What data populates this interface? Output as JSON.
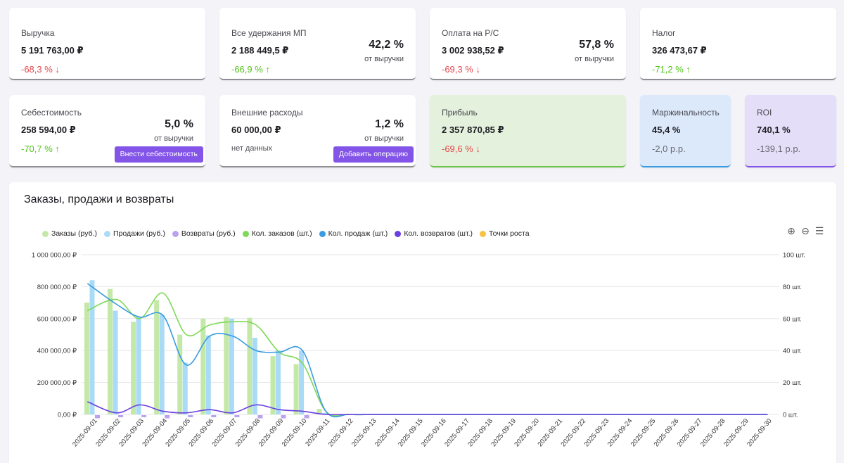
{
  "cards": {
    "revenue": {
      "label": "Выручка",
      "value": "5 191 763,00 ₽",
      "delta": "-68,3 % ↓"
    },
    "deductions": {
      "label": "Все удержания МП",
      "value": "2 188 449,5 ₽",
      "delta": "-66,9 % ↑",
      "pct": "42,2 %",
      "pct_sub": "от выручки"
    },
    "payment": {
      "label": "Оплата на Р/С",
      "value": "3 002 938,52 ₽",
      "delta": "-69,3 % ↓",
      "pct": "57,8 %",
      "pct_sub": "от выручки"
    },
    "tax": {
      "label": "Налог",
      "value": "326 473,67 ₽",
      "delta": "-71,2 % ↑"
    },
    "cost": {
      "label": "Себестоимость",
      "value": "258 594,00 ₽",
      "delta": "-70,7 % ↑",
      "pct": "5,0 %",
      "pct_sub": "от выручки",
      "button": "Внести себестоимость"
    },
    "external": {
      "label": "Внешние расходы",
      "value": "60 000,00 ₽",
      "note": "нет данных",
      "pct": "1,2 %",
      "pct_sub": "от выручки",
      "button": "Добавить операцию"
    },
    "profit": {
      "label": "Прибыль",
      "value": "2 357 870,85 ₽",
      "delta": "-69,6 % ↓"
    },
    "margin": {
      "label": "Маржинальность",
      "value": "45,4 %",
      "delta": "-2,0 p.p."
    },
    "roi": {
      "label": "ROI",
      "value": "740,1 %",
      "delta": "-139,1 p.p."
    }
  },
  "colors": {
    "accent": "#8354e8",
    "red": "#e5484d",
    "green": "#52c41a",
    "orders_bar": "#c3e8a8",
    "sales_bar": "#a9dbf7",
    "returns_bar": "#b9a3ef",
    "orders_line": "#7ed957",
    "sales_line": "#3a9be0",
    "returns_line": "#6a3ee0",
    "growth": "#f5c242"
  },
  "chart": {
    "title": "Заказы, продажи и возвраты",
    "legend": [
      {
        "name": "Заказы (руб.)",
        "color": "#c3e8a8"
      },
      {
        "name": "Продажи (руб.)",
        "color": "#a9dbf7"
      },
      {
        "name": "Возвраты (руб.)",
        "color": "#b9a3ef"
      },
      {
        "name": "Кол. заказов (шт.)",
        "color": "#7ed957"
      },
      {
        "name": "Кол. продаж (шт.)",
        "color": "#3a9be0"
      },
      {
        "name": "Кол. возвратов (шт.)",
        "color": "#6a3ee0"
      },
      {
        "name": "Точки роста",
        "color": "#f5c242"
      }
    ],
    "toolbar": {
      "zoom_in_icon": "zoom-in-icon",
      "zoom_out_icon": "zoom-out-icon",
      "menu_icon": "menu-icon"
    }
  },
  "chart_data": {
    "type": "bar",
    "title": "Заказы, продажи и возвраты",
    "categories": [
      "2025-09-01",
      "2025-09-02",
      "2025-09-03",
      "2025-09-04",
      "2025-09-05",
      "2025-09-06",
      "2025-09-07",
      "2025-09-08",
      "2025-09-09",
      "2025-09-10",
      "2025-09-11",
      "2025-09-12",
      "2025-09-13",
      "2025-09-14",
      "2025-09-15",
      "2025-09-16",
      "2025-09-17",
      "2025-09-18",
      "2025-09-19",
      "2025-09-20",
      "2025-09-21",
      "2025-09-22",
      "2025-09-23",
      "2025-09-24",
      "2025-09-25",
      "2025-09-26",
      "2025-09-27",
      "2025-09-28",
      "2025-09-29",
      "2025-09-30"
    ],
    "y_left": {
      "ylim": [
        0,
        1000000
      ],
      "ticks": [
        "0,00 ₽",
        "200 000,00 ₽",
        "400 000,00 ₽",
        "600 000,00 ₽",
        "800 000,00 ₽",
        "1 000 000,00 ₽"
      ]
    },
    "y_right": {
      "ylim": [
        0,
        100
      ],
      "ticks": [
        "0 шт.",
        "20 шт.",
        "40 шт.",
        "60 шт.",
        "80 шт.",
        "100 шт."
      ]
    },
    "series": [
      {
        "name": "Заказы (руб.)",
        "kind": "bar",
        "axis": "left",
        "color": "#c3e8a8",
        "values": [
          700000,
          785000,
          580000,
          715000,
          500000,
          600000,
          610000,
          605000,
          365000,
          315000,
          35000,
          0,
          0,
          0,
          0,
          0,
          0,
          0,
          0,
          0,
          0,
          0,
          0,
          0,
          0,
          0,
          0,
          0,
          0,
          0
        ]
      },
      {
        "name": "Продажи (руб.)",
        "kind": "bar",
        "axis": "left",
        "color": "#a9dbf7",
        "values": [
          840000,
          650000,
          610000,
          625000,
          325000,
          495000,
          600000,
          480000,
          400000,
          400000,
          10000,
          0,
          0,
          0,
          0,
          0,
          0,
          0,
          0,
          0,
          0,
          0,
          0,
          0,
          0,
          0,
          0,
          0,
          0,
          0
        ]
      },
      {
        "name": "Возвраты (руб.)",
        "kind": "bar",
        "axis": "left",
        "color": "#b9a3ef",
        "values": [
          -20000,
          -5000,
          -5000,
          -20000,
          -10000,
          -5000,
          -5000,
          -20000,
          -20000,
          -20000,
          0,
          0,
          0,
          0,
          0,
          0,
          0,
          0,
          0,
          0,
          0,
          0,
          0,
          0,
          0,
          0,
          0,
          0,
          0,
          0
        ]
      },
      {
        "name": "Кол. заказов (шт.)",
        "kind": "line",
        "axis": "right",
        "color": "#7ed957",
        "values": [
          65,
          72,
          60,
          76,
          50,
          56,
          58,
          56,
          39,
          32,
          2,
          0,
          0,
          0,
          0,
          0,
          0,
          0,
          0,
          0,
          0,
          0,
          0,
          0,
          0,
          0,
          0,
          0,
          0,
          0
        ]
      },
      {
        "name": "Кол. продаж (шт.)",
        "kind": "line",
        "axis": "right",
        "color": "#3a9be0",
        "values": [
          82,
          69,
          61,
          62,
          31,
          49,
          49,
          40,
          39,
          40,
          2,
          0,
          0,
          0,
          0,
          0,
          0,
          0,
          0,
          0,
          0,
          0,
          0,
          0,
          0,
          0,
          0,
          0,
          0,
          0
        ]
      },
      {
        "name": "Кол. возвратов (шт.)",
        "kind": "line",
        "axis": "right",
        "color": "#6a3ee0",
        "values": [
          8,
          1,
          6,
          2,
          1,
          3,
          1,
          6,
          3,
          2,
          0,
          0,
          0,
          0,
          0,
          0,
          0,
          0,
          0,
          0,
          0,
          0,
          0,
          0,
          0,
          0,
          0,
          0,
          0,
          0
        ]
      }
    ],
    "grid": true,
    "legend_placement": "top-left"
  }
}
